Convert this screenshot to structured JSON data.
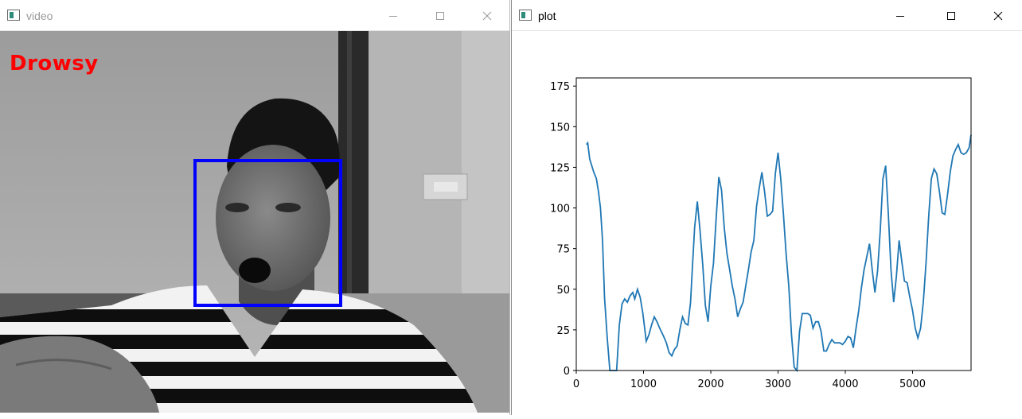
{
  "video_window": {
    "title": "video",
    "status_label": "Drowsy",
    "status_color": "#ff0000",
    "face_box_color": "#0000ff"
  },
  "plot_window": {
    "title": "plot"
  },
  "window_controls": {
    "minimize": "minimize-icon",
    "maximize": "maximize-icon",
    "close": "close-icon"
  },
  "chart_data": {
    "type": "line",
    "title": "",
    "xlabel": "",
    "ylabel": "",
    "xlim": [
      0,
      5870
    ],
    "ylim": [
      0,
      180
    ],
    "xticks": [
      0,
      1000,
      2000,
      3000,
      4000,
      5000
    ],
    "yticks": [
      0,
      25,
      50,
      75,
      100,
      125,
      150,
      175
    ],
    "grid": false,
    "series": [
      {
        "color": "#1f77b4",
        "x": [
          150,
          170,
          200,
          260,
          300,
          330,
          360,
          390,
          420,
          460,
          500,
          560,
          600,
          640,
          680,
          720,
          760,
          800,
          840,
          870,
          910,
          950,
          990,
          1040,
          1080,
          1120,
          1160,
          1200,
          1240,
          1300,
          1340,
          1380,
          1420,
          1460,
          1500,
          1540,
          1580,
          1620,
          1660,
          1700,
          1720,
          1760,
          1800,
          1840,
          1880,
          1920,
          1960,
          2000,
          2040,
          2080,
          2120,
          2160,
          2200,
          2240,
          2280,
          2320,
          2360,
          2400,
          2440,
          2480,
          2520,
          2560,
          2600,
          2640,
          2680,
          2720,
          2760,
          2800,
          2840,
          2880,
          2920,
          2960,
          3000,
          3040,
          3080,
          3120,
          3160,
          3200,
          3240,
          3280,
          3320,
          3360,
          3400,
          3440,
          3480,
          3520,
          3560,
          3600,
          3640,
          3680,
          3720,
          3760,
          3800,
          3840,
          3880,
          3920,
          3960,
          4000,
          4040,
          4080,
          4120,
          4160,
          4200,
          4240,
          4280,
          4320,
          4360,
          4400,
          4440,
          4480,
          4520,
          4560,
          4600,
          4640,
          4680,
          4720,
          4760,
          4800,
          4840,
          4880,
          4920,
          4960,
          5000,
          5040,
          5080,
          5120,
          5160,
          5200,
          5240,
          5280,
          5320,
          5360,
          5400,
          5440,
          5480,
          5520,
          5560,
          5600,
          5640,
          5680,
          5720,
          5760,
          5800,
          5840,
          5870
        ],
        "values": [
          139,
          140,
          130,
          122,
          118,
          110,
          100,
          80,
          45,
          20,
          0,
          0,
          0,
          28,
          41,
          44,
          42,
          46,
          48,
          44,
          50,
          45,
          35,
          18,
          22,
          28,
          33,
          30,
          26,
          21,
          17,
          11,
          9,
          13,
          15,
          25,
          33,
          29,
          28,
          42,
          58,
          88,
          104,
          86,
          65,
          40,
          30,
          52,
          66,
          94,
          119,
          111,
          88,
          72,
          62,
          52,
          44,
          33,
          38,
          42,
          52,
          62,
          73,
          80,
          101,
          112,
          122,
          110,
          95,
          96,
          98,
          121,
          134,
          118,
          96,
          72,
          52,
          22,
          2,
          0,
          24,
          35,
          35,
          35,
          34,
          26,
          30,
          30,
          24,
          12,
          12,
          16,
          19,
          17,
          17,
          17,
          16,
          18,
          21,
          20,
          14,
          26,
          37,
          51,
          62,
          70,
          78,
          62,
          48,
          61,
          86,
          118,
          126,
          96,
          62,
          42,
          58,
          80,
          67,
          55,
          54,
          45,
          37,
          26,
          20,
          26,
          42,
          66,
          95,
          118,
          124,
          121,
          110,
          97,
          96,
          108,
          122,
          132,
          136,
          139,
          134,
          133,
          134,
          137,
          145
        ]
      }
    ]
  }
}
